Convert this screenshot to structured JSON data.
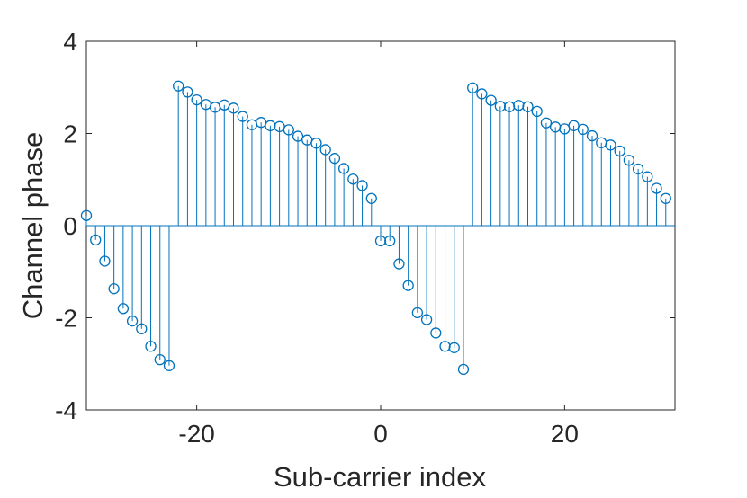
{
  "chart_data": {
    "type": "stem",
    "title": "",
    "xlabel": "Sub-carrier index",
    "ylabel": "Channel phase",
    "xlim": [
      -32,
      32
    ],
    "ylim": [
      -4,
      4
    ],
    "xticks": [
      -20,
      0,
      20
    ],
    "yticks": [
      -4,
      -2,
      0,
      2,
      4
    ],
    "xtick_labels": [
      "-20",
      "0",
      "20"
    ],
    "ytick_labels": [
      "-4",
      "-2",
      "0",
      "2",
      "4"
    ],
    "grid": false,
    "box": true,
    "marker": "circle",
    "color": "#0072BD",
    "x": [
      -32,
      -31,
      -30,
      -29,
      -28,
      -27,
      -26,
      -25,
      -24,
      -23,
      -22,
      -21,
      -20,
      -19,
      -18,
      -17,
      -16,
      -15,
      -14,
      -13,
      -12,
      -11,
      -10,
      -9,
      -8,
      -7,
      -6,
      -5,
      -4,
      -3,
      -2,
      -1,
      0,
      1,
      2,
      3,
      4,
      5,
      6,
      7,
      8,
      9,
      10,
      11,
      12,
      13,
      14,
      15,
      16,
      17,
      18,
      19,
      20,
      21,
      22,
      23,
      24,
      25,
      26,
      27,
      28,
      29,
      30,
      31
    ],
    "y": [
      0.22,
      -0.31,
      -0.77,
      -1.37,
      -1.8,
      -2.07,
      -2.24,
      -2.62,
      -2.91,
      -3.04,
      3.03,
      2.9,
      2.73,
      2.63,
      2.57,
      2.62,
      2.55,
      2.37,
      2.19,
      2.24,
      2.17,
      2.15,
      2.08,
      1.94,
      1.86,
      1.79,
      1.65,
      1.46,
      1.24,
      1.01,
      0.87,
      0.59,
      -0.33,
      -0.33,
      -0.83,
      -1.3,
      -1.89,
      -2.04,
      -2.33,
      -2.62,
      -2.65,
      -3.12,
      2.99,
      2.86,
      2.72,
      2.59,
      2.58,
      2.61,
      2.58,
      2.48,
      2.23,
      2.14,
      2.1,
      2.17,
      2.09,
      1.95,
      1.8,
      1.75,
      1.62,
      1.42,
      1.23,
      1.06,
      0.81,
      0.59
    ]
  }
}
